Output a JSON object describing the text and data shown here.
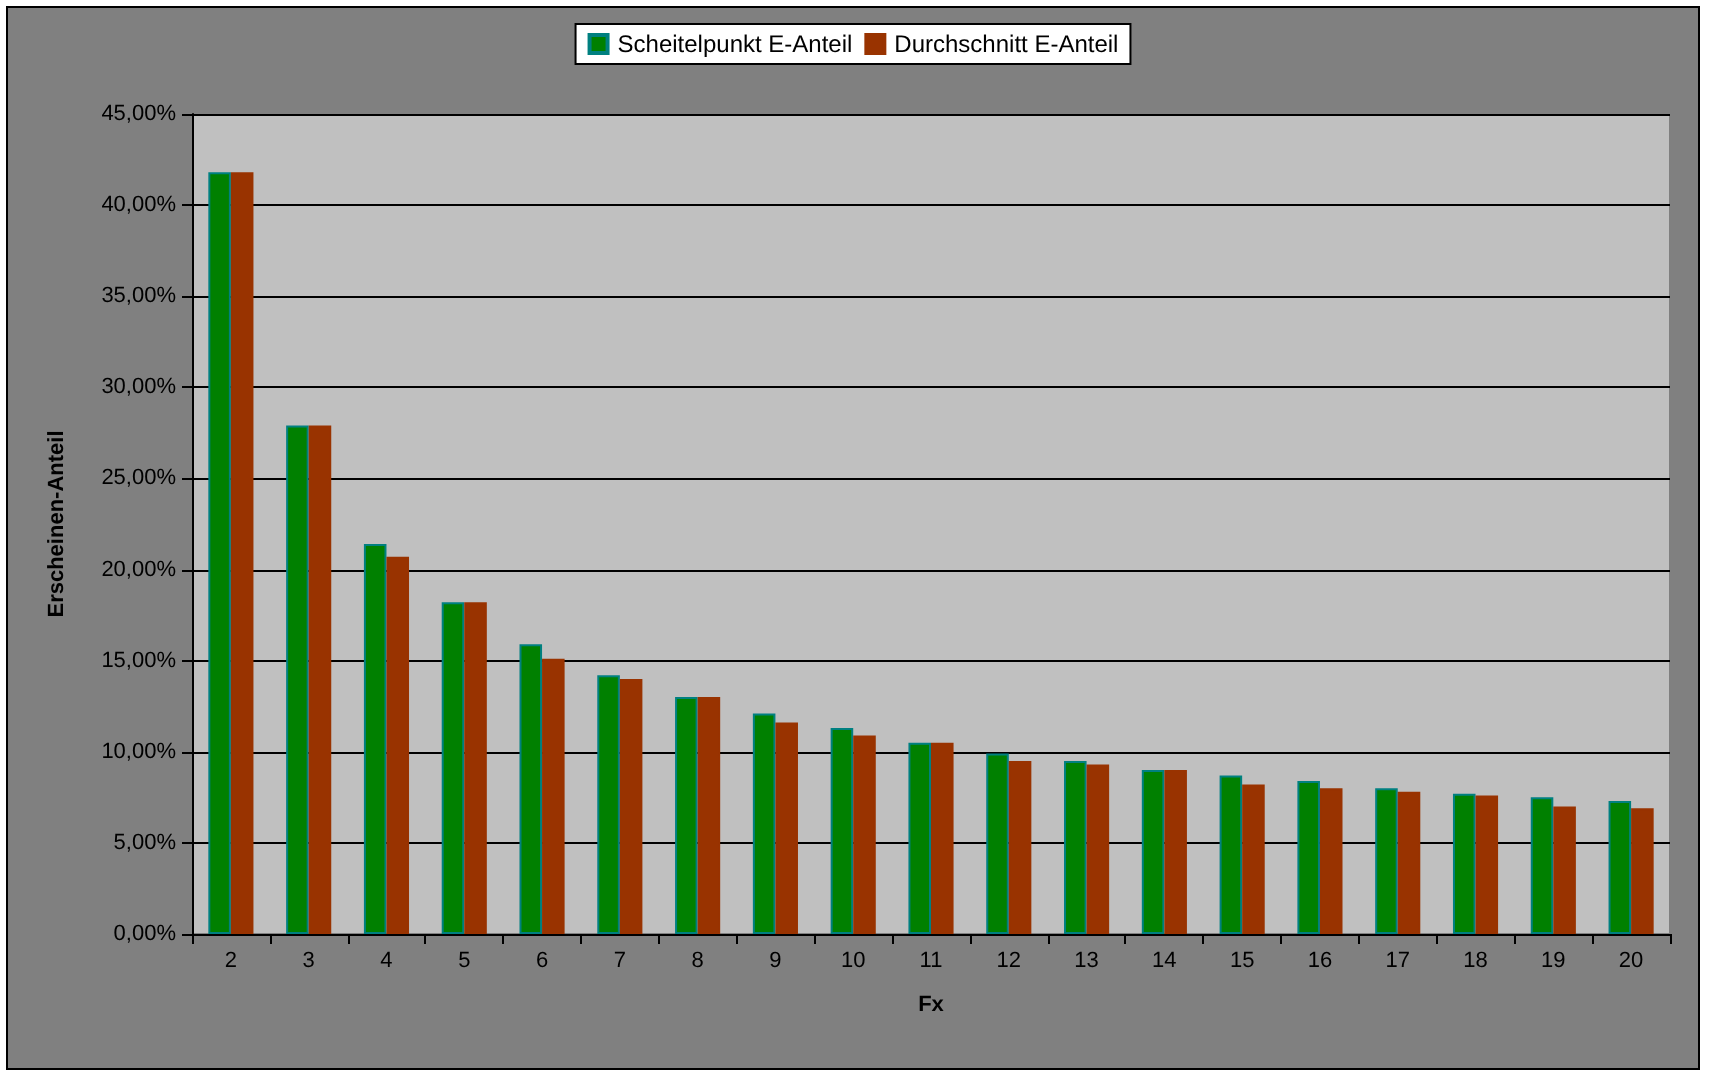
{
  "chart_data": {
    "type": "bar",
    "xlabel": "Fx",
    "ylabel": "Erscheinen-Anteil",
    "categories": [
      "2",
      "3",
      "4",
      "5",
      "6",
      "7",
      "8",
      "9",
      "10",
      "11",
      "12",
      "13",
      "14",
      "15",
      "16",
      "17",
      "18",
      "19",
      "20"
    ],
    "series": [
      {
        "name": "Scheitelpunkt E-Anteil",
        "color": "#008000",
        "values": [
          41.8,
          27.9,
          21.4,
          18.2,
          15.9,
          14.2,
          13.0,
          12.1,
          11.3,
          10.5,
          9.9,
          9.5,
          9.0,
          8.7,
          8.4,
          8.0,
          7.7,
          7.5,
          7.3
        ]
      },
      {
        "name": "Durchschnitt E-Anteil",
        "color": "#993300",
        "values": [
          41.8,
          27.9,
          20.7,
          18.2,
          15.1,
          14.0,
          13.0,
          11.6,
          10.9,
          10.5,
          9.5,
          9.3,
          9.0,
          8.2,
          8.0,
          7.8,
          7.6,
          7.0,
          6.9
        ]
      }
    ],
    "ylim": [
      0,
      45
    ],
    "yticks": [
      {
        "value": 0,
        "label": "0,00%"
      },
      {
        "value": 5,
        "label": "5,00%"
      },
      {
        "value": 10,
        "label": "10,00%"
      },
      {
        "value": 15,
        "label": "15,00%"
      },
      {
        "value": 20,
        "label": "20,00%"
      },
      {
        "value": 25,
        "label": "25,00%"
      },
      {
        "value": 30,
        "label": "30,00%"
      },
      {
        "value": 35,
        "label": "35,00%"
      },
      {
        "value": 40,
        "label": "40,00%"
      },
      {
        "value": 45,
        "label": "45,00%"
      }
    ],
    "grid": "y",
    "legend": "top"
  }
}
